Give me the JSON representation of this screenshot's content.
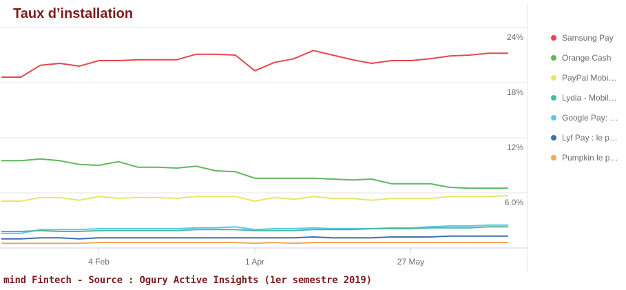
{
  "title": "Taux d’installation",
  "source": "mind Fintech - Source : Ogury Active Insights (1er semestre 2019)",
  "chart_data": {
    "type": "line",
    "x_ticks": [
      {
        "label": "4 Feb",
        "x": 5
      },
      {
        "label": "1 Apr",
        "x": 13
      },
      {
        "label": "27 May",
        "x": 21
      }
    ],
    "y_ticks": [
      "24%",
      "18%",
      "12%",
      "6.0%"
    ],
    "y_tick_values": [
      24,
      18,
      12,
      6
    ],
    "ylim": [
      0,
      24
    ],
    "x": [
      0,
      1,
      2,
      3,
      4,
      5,
      6,
      7,
      8,
      9,
      10,
      11,
      12,
      13,
      14,
      15,
      16,
      17,
      18,
      19,
      20,
      21,
      22,
      23,
      24,
      25,
      26
    ],
    "series": [
      {
        "name": "Samsung Pay",
        "color": "#e8454f",
        "values": [
          18.6,
          18.6,
          19.9,
          20.1,
          19.8,
          20.4,
          20.4,
          20.5,
          20.5,
          20.5,
          21.1,
          21.1,
          21.0,
          19.3,
          20.2,
          20.6,
          21.5,
          21.0,
          20.5,
          20.1,
          20.4,
          20.4,
          20.6,
          20.9,
          21.0,
          21.2,
          21.2
        ]
      },
      {
        "name": "Orange Cash",
        "color": "#5cb85c",
        "values": [
          9.5,
          9.5,
          9.7,
          9.5,
          9.1,
          9.0,
          9.4,
          8.8,
          8.8,
          8.7,
          8.9,
          8.4,
          8.3,
          7.6,
          7.6,
          7.6,
          7.6,
          7.5,
          7.4,
          7.5,
          7.0,
          7.0,
          7.0,
          6.6,
          6.5,
          6.5,
          6.5
        ]
      },
      {
        "name": "PayPal Mobile",
        "color": "#e8e46a",
        "values": [
          5.1,
          5.1,
          5.5,
          5.5,
          5.2,
          5.6,
          5.4,
          5.5,
          5.5,
          5.4,
          5.6,
          5.6,
          5.6,
          5.1,
          5.5,
          5.3,
          5.6,
          5.4,
          5.4,
          5.2,
          5.4,
          5.4,
          5.4,
          5.6,
          5.6,
          5.6,
          5.7
        ]
      },
      {
        "name": "Lydia - Mobile",
        "color": "#4db8a0",
        "values": [
          1.8,
          1.8,
          1.9,
          1.8,
          1.8,
          1.9,
          1.9,
          1.9,
          1.9,
          1.9,
          2.0,
          2.0,
          2.0,
          1.9,
          1.9,
          1.9,
          2.0,
          2.0,
          2.0,
          2.1,
          2.1,
          2.1,
          2.2,
          2.2,
          2.2,
          2.3,
          2.3
        ]
      },
      {
        "name": "Google Pay",
        "color": "#5bc8e6",
        "values": [
          1.6,
          1.6,
          2.0,
          2.0,
          2.0,
          2.1,
          2.1,
          2.1,
          2.1,
          2.1,
          2.2,
          2.2,
          2.3,
          2.0,
          2.1,
          2.1,
          2.2,
          2.1,
          2.1,
          2.1,
          2.2,
          2.2,
          2.3,
          2.4,
          2.4,
          2.5,
          2.5
        ]
      },
      {
        "name": "Lyf Pay",
        "color": "#3f6fb0",
        "values": [
          1.0,
          1.0,
          1.1,
          1.1,
          1.0,
          1.1,
          1.1,
          1.1,
          1.1,
          1.1,
          1.1,
          1.1,
          1.1,
          1.1,
          1.1,
          1.1,
          1.2,
          1.1,
          1.1,
          1.1,
          1.2,
          1.2,
          1.2,
          1.3,
          1.3,
          1.3,
          1.3
        ]
      },
      {
        "name": "Pumpkin le paiement",
        "color": "#f0a85a",
        "values": [
          0.5,
          0.5,
          0.5,
          0.5,
          0.5,
          0.6,
          0.6,
          0.6,
          0.6,
          0.6,
          0.6,
          0.6,
          0.6,
          0.5,
          0.6,
          0.5,
          0.6,
          0.6,
          0.6,
          0.6,
          0.6,
          0.6,
          0.6,
          0.6,
          0.6,
          0.6,
          0.6
        ]
      }
    ],
    "legend": {
      "placement": "right",
      "labels": [
        "Samsung Pay",
        "Orange Cash",
        "PayPal Mobi…",
        "Lydia - Mobil…",
        "Google Pay: …",
        "Lyf Pay : le p…",
        "Pumpkin le p…"
      ]
    },
    "grid": true
  },
  "colors": {
    "title": "#7b1c1c",
    "grid": "#e6e6e6",
    "axis": "#ccd6eb"
  }
}
